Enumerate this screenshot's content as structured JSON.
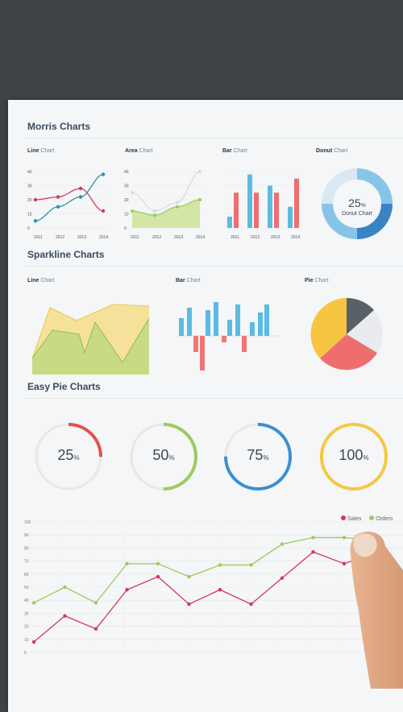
{
  "morris": {
    "title": "Morris Charts",
    "line": {
      "bold": "Line",
      "rest": " Chart"
    },
    "area": {
      "bold": "Area",
      "rest": " Chart"
    },
    "bar": {
      "bold": "Bar",
      "rest": " Chart"
    },
    "donut": {
      "bold": "Donut",
      "rest": " Chart"
    },
    "y_ticks": [
      "40",
      "30",
      "20",
      "10",
      "0"
    ],
    "x_ticks": [
      "2011",
      "2012",
      "2013",
      "2014"
    ],
    "donut_value": "25",
    "donut_unit": "%",
    "donut_label": "Donut Chart"
  },
  "sparkline": {
    "title": "Sparkline Charts",
    "line": {
      "bold": "Line",
      "rest": " Chart"
    },
    "bar": {
      "bold": "Bar",
      "rest": " Chart"
    },
    "pie": {
      "bold": "Pie",
      "rest": " Chart"
    }
  },
  "easypie": {
    "title": "Easy Pie Charts",
    "items": [
      {
        "value": "25",
        "unit": "%",
        "color": "#e2514c"
      },
      {
        "value": "50",
        "unit": "%",
        "color": "#9ccb5c"
      },
      {
        "value": "75",
        "unit": "%",
        "color": "#3b8fd0"
      },
      {
        "value": "100",
        "unit": "%",
        "color": "#f5c842"
      }
    ]
  },
  "bottom": {
    "legend": [
      {
        "name": "Sales",
        "color": "#d6336c"
      },
      {
        "name": "Orders",
        "color": "#9ccb5c"
      }
    ],
    "y_ticks": [
      "100",
      "90",
      "80",
      "70",
      "60",
      "50",
      "40",
      "30",
      "20",
      "10",
      "0"
    ]
  },
  "chart_data": [
    {
      "type": "line",
      "title": "Line Chart",
      "x": [
        "2011",
        "2012",
        "2013",
        "2014"
      ],
      "series": [
        {
          "values": [
            20,
            22,
            28,
            12
          ]
        },
        {
          "values": [
            5,
            15,
            22,
            38
          ]
        }
      ]
    },
    {
      "type": "area",
      "title": "Area Chart",
      "x": [
        "2011",
        "2012",
        "2013",
        "2014"
      ],
      "series": [
        {
          "values": [
            12,
            9,
            15,
            20
          ]
        },
        {
          "values": [
            25,
            12,
            18,
            40
          ]
        }
      ]
    },
    {
      "type": "bar",
      "title": "Bar Chart",
      "categories": [
        "2011",
        "2012",
        "2013",
        "2014"
      ],
      "series": [
        {
          "values": [
            8,
            38,
            30,
            15
          ]
        },
        {
          "values": [
            25,
            25,
            25,
            35
          ]
        }
      ]
    },
    {
      "type": "pie",
      "title": "Donut Chart",
      "values": [
        25,
        25,
        50
      ]
    },
    {
      "type": "line",
      "series": [
        {
          "name": "Sales",
          "values": [
            8,
            28,
            18,
            48,
            58,
            37,
            48,
            37,
            57,
            77,
            68,
            76
          ]
        },
        {
          "name": "Orders",
          "values": [
            38,
            50,
            38,
            68,
            68,
            58,
            67,
            67,
            83,
            88,
            88,
            86
          ]
        }
      ],
      "ylim": [
        0,
        100
      ]
    }
  ]
}
